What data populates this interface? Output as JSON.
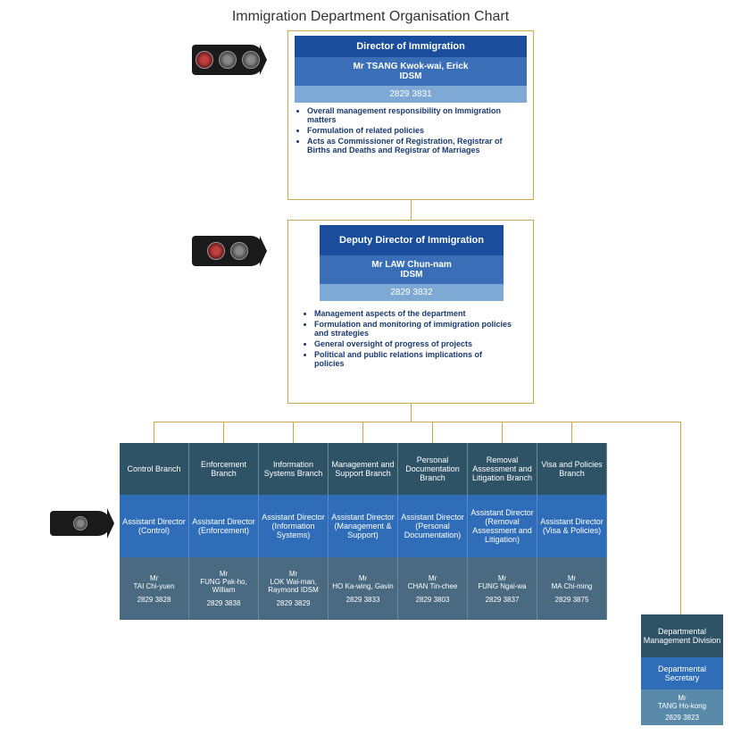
{
  "title": "Immigration Department Organisation Chart",
  "colors": {
    "banner_dark": "#1a4d9c",
    "banner_mid": "#3a6fb8",
    "banner_light": "#7da9d4",
    "branch_head": "#2e5266",
    "branch_ad": "#2f6db8",
    "branch_person": "#4a6a82",
    "connector": "#c9a84a"
  },
  "director": {
    "title": "Director of Immigration",
    "name": "Mr TSANG Kwok-wai, Erick",
    "honour": "IDSM",
    "phone": "2829 3831",
    "bullets": [
      "Overall management responsibility on Immigration matters",
      "Formulation of related policies",
      "Acts as Commissioner of Registration, Registrar of Births and Deaths and Registrar of Marriages"
    ]
  },
  "deputy": {
    "title": "Deputy Director of Immigration",
    "name": "Mr  LAW Chun-nam",
    "honour": "IDSM",
    "phone": "2829 3832",
    "bullets": [
      "Management aspects of the department",
      "Formulation and monitoring of immigration policies and strategies",
      "General oversight of progress of projects",
      "Political and public relations implications of policies"
    ]
  },
  "branches": [
    {
      "head": "Control Branch",
      "ad_title": "Assistant Director",
      "ad_sub": "(Control)",
      "name_prefix": "Mr",
      "name": "TAI Chi-yuen",
      "phone": "2829 3828"
    },
    {
      "head": "Enforcement Branch",
      "ad_title": "Assistant Director",
      "ad_sub": "(Enforcement)",
      "name_prefix": "Mr",
      "name": "FUNG Pak-ho, William",
      "phone": "2829 3838"
    },
    {
      "head": "Information Systems Branch",
      "ad_title": "Assistant Director",
      "ad_sub": "(Information Systems)",
      "name_prefix": "Mr",
      "name": "LOK Wai-man, Raymond IDSM",
      "phone": "2829 3829"
    },
    {
      "head": "Management and Support Branch",
      "ad_title": "Assistant Director",
      "ad_sub": "(Management & Support)",
      "name_prefix": "Mr",
      "name": "HO Ka-wing, Gavin",
      "phone": "2829 3833"
    },
    {
      "head": "Personal Documentation Branch",
      "ad_title": "Assistant Director",
      "ad_sub": "(Personal Documentation)",
      "name_prefix": "Mr",
      "name": "CHAN Tin-chee",
      "phone": "2829 3803"
    },
    {
      "head": "Removal Assessment and Litigation Branch",
      "ad_title": "Assistant Director",
      "ad_sub": "(Removal Assessment and Litigation)",
      "name_prefix": "Mr",
      "name": "FUNG Ngai-wa",
      "phone": "2829 3837"
    },
    {
      "head": "Visa and Policies Branch",
      "ad_title": "Assistant Director",
      "ad_sub": "(Visa & Policies)",
      "name_prefix": "Mr",
      "name": "MA Chi-ming",
      "phone": "2829 3875"
    }
  ],
  "division": {
    "head": "Departmental Management Division",
    "title": "Departmental Secretary",
    "name_prefix": "Mr",
    "name": "TANG Ho-kong",
    "phone": "2829 3823"
  }
}
